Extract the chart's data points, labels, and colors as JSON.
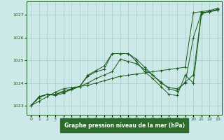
{
  "title": "Graphe pression niveau de la mer (hPa)",
  "background_color": "#cce8e8",
  "grid_color": "#aacccc",
  "line_color": "#1a5c1a",
  "label_bg_color": "#2d6b2d",
  "label_text_color": "#ffffff",
  "xlim": [
    -0.5,
    23.5
  ],
  "ylim": [
    1022.6,
    1027.6
  ],
  "yticks": [
    1023,
    1024,
    1025,
    1026,
    1027
  ],
  "xtick_labels": [
    "0",
    "1",
    "2",
    "3",
    "4",
    "5",
    "6",
    "7",
    "8",
    "9",
    "10",
    "11",
    "12",
    "13",
    "14",
    "15",
    "16",
    "17",
    "18",
    "19",
    "20",
    "21",
    "22",
    "23"
  ],
  "series": [
    [
      1023.0,
      1023.2,
      1023.4,
      1023.6,
      1023.75,
      1023.8,
      1023.85,
      1023.9,
      1024.0,
      1024.1,
      1024.2,
      1024.3,
      1024.35,
      1024.4,
      1024.45,
      1024.5,
      1024.55,
      1024.6,
      1024.65,
      1024.7,
      1027.1,
      1027.15,
      1027.2,
      1027.3
    ],
    [
      1023.0,
      1023.4,
      1023.5,
      1023.5,
      1023.65,
      1023.75,
      1023.85,
      1024.3,
      1024.5,
      1024.6,
      1025.3,
      1025.3,
      1025.3,
      1025.05,
      1024.7,
      1024.35,
      1024.0,
      1023.8,
      1023.75,
      1024.0,
      1026.0,
      1027.1,
      1027.15,
      1027.2
    ],
    [
      1023.0,
      1023.35,
      1023.5,
      1023.5,
      1023.6,
      1023.7,
      1023.85,
      1024.0,
      1024.2,
      1024.35,
      1024.5,
      1025.05,
      1024.95,
      1024.85,
      1024.6,
      1024.35,
      1024.05,
      1023.75,
      1023.65,
      1024.05,
      1024.35,
      1027.1,
      1027.15,
      1027.25
    ],
    [
      1023.0,
      1023.4,
      1023.5,
      1023.45,
      1023.55,
      1023.75,
      1023.85,
      1024.35,
      1024.55,
      1024.75,
      1025.3,
      1025.3,
      1025.3,
      1024.95,
      1024.5,
      1024.2,
      1023.85,
      1023.5,
      1023.45,
      1024.35,
      1024.0,
      1027.05,
      1027.15,
      1027.25
    ]
  ]
}
